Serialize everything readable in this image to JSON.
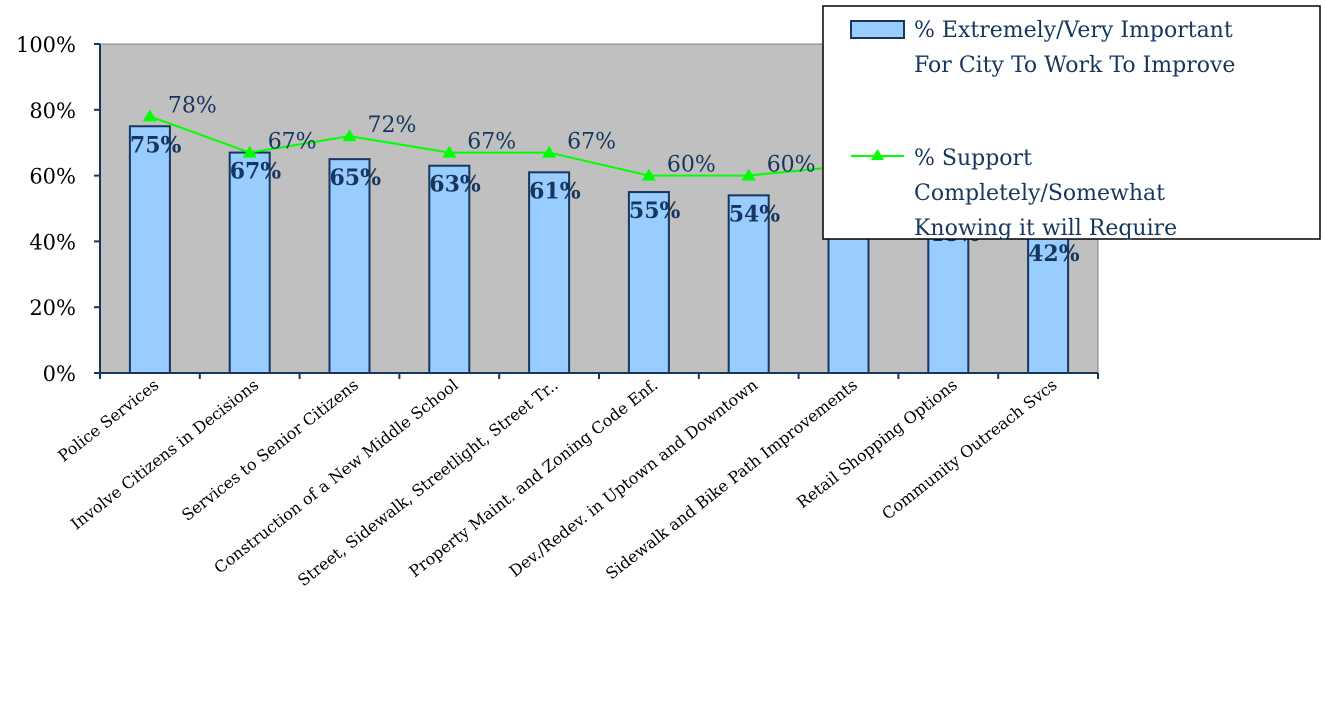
{
  "chart_data": {
    "type": "bar",
    "categories": [
      "Police Services",
      "Involve Citizens in Decisions",
      "Services to Senior Citizens",
      "Construction of a New Middle School",
      "Street, Sidewalk, Streetlight, Street Tr..",
      "Property Maint. and Zoning Code Enf.",
      "Dev./Redev. in Uptown and Downtown",
      "Sidewalk and Bike Path Improvements",
      "Retail Shopping Options",
      "Community Outreach Svcs"
    ],
    "series": [
      {
        "name": "% Extremely/Very Important For City To Work To Improve",
        "type": "bar",
        "values": [
          75,
          67,
          65,
          63,
          61,
          55,
          54,
          48,
          48,
          42
        ],
        "labels": [
          "75%",
          "67%",
          "65%",
          "63%",
          "61%",
          "55%",
          "54%",
          "",
          "48%",
          "42%"
        ],
        "color": "#99ccff"
      },
      {
        "name": "% Support Completely/Somewhat Knowing it will Require",
        "type": "line",
        "values": [
          78,
          67,
          72,
          67,
          67,
          60,
          60,
          63,
          63,
          63
        ],
        "labels": [
          "78%",
          "67%",
          "72%",
          "67%",
          "67%",
          "60%",
          "60%",
          "",
          "",
          ""
        ],
        "color": "#00ff00"
      }
    ],
    "ylim": [
      0,
      100
    ],
    "yticks": [
      "0%",
      "20%",
      "40%",
      "60%",
      "80%",
      "100%"
    ],
    "grid": false,
    "plot_background": "#c0c0c0",
    "legend_position": "top-right",
    "legend": [
      {
        "lines": [
          "% Extremely/Very Important",
          "For City To Work To Improve"
        ]
      },
      {
        "lines": [
          "% Support",
          "Completely/Somewhat",
          "Knowing it will Require"
        ]
      }
    ]
  }
}
